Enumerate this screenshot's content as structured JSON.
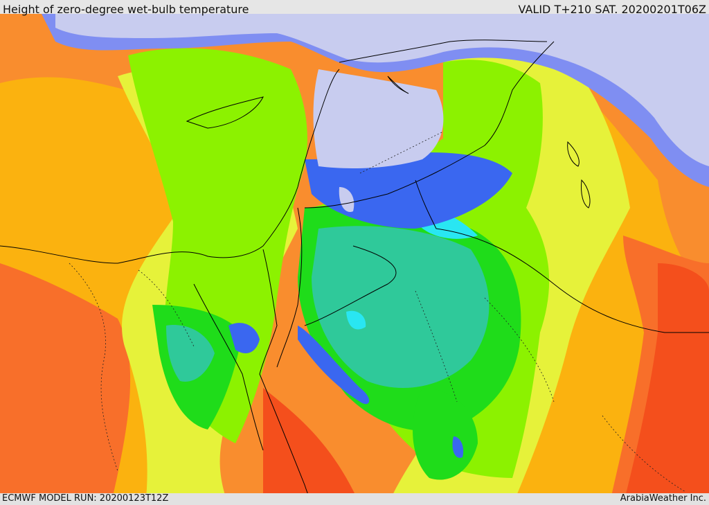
{
  "header": {
    "title": "Height of zero-degree wet-bulb temperature",
    "valid": "VALID T+210 SAT. 20200201T06Z"
  },
  "footer": {
    "model_run": "ECMWF MODEL RUN: 20200123T12Z",
    "credit": "ArabiaWeather Inc."
  },
  "colors": {
    "deep_red": "#f44f1c",
    "red_orange": "#f86f2a",
    "orange": "#f98d2e",
    "light_orange": "#fbb20f",
    "yellow": "#e6f23a",
    "yellow_green": "#c6f23a",
    "lime": "#8cf200",
    "green": "#1fdc1a",
    "teal": "#2fc99a",
    "cyan": "#29e6f2",
    "blue": "#3a67f0",
    "periwinkle": "#7f8ef2",
    "lavender": "#c8ccef"
  }
}
